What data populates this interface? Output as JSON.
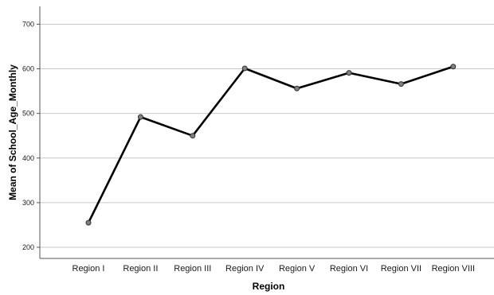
{
  "chart_data": {
    "type": "line",
    "title": "",
    "xlabel": "Region",
    "ylabel": "Mean of School_Age_Monthly",
    "categories": [
      "Region I",
      "Region II",
      "Region III",
      "Region IV",
      "Region V",
      "Region VI",
      "Region VII",
      "Region VIII"
    ],
    "series": [
      {
        "values": [
          255,
          492,
          450,
          601,
          556,
          591,
          566,
          605
        ]
      }
    ],
    "ylim": [
      175,
      740
    ],
    "yticks": [
      200,
      300,
      400,
      500,
      600,
      700
    ],
    "grid": "horizontal",
    "legend": "none",
    "colors": {
      "line": "#000000",
      "marker_fill": "#808080",
      "grid": "#c8c8c8",
      "axis": "#555555"
    }
  }
}
